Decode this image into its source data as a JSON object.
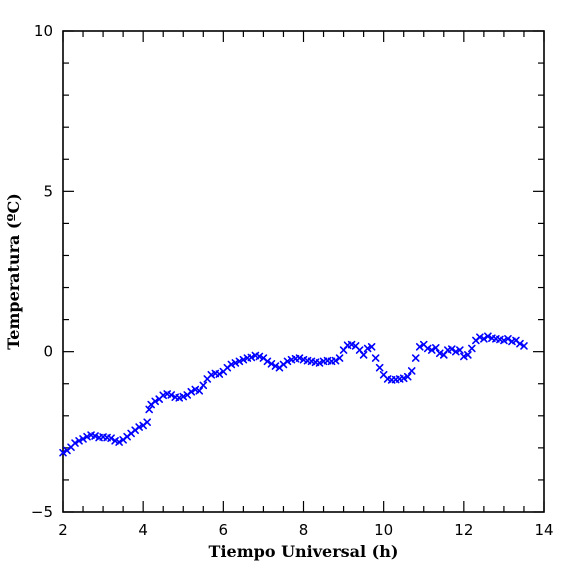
{
  "chart_data": {
    "type": "scatter",
    "xlabel": "Tiempo Universal (h)",
    "ylabel": "Temperatura (ºC)",
    "xlim": [
      2,
      14
    ],
    "ylim": [
      -5,
      10
    ],
    "x_ticks": [
      2,
      4,
      6,
      8,
      10,
      12,
      14
    ],
    "y_ticks": [
      -5,
      0,
      5,
      10
    ],
    "marker": "x",
    "marker_color": "#0000ff",
    "frame_color": "#000000",
    "background": "#ffffff",
    "legend": "none",
    "grid": false,
    "series": [
      {
        "points": [
          [
            2.0,
            -3.15
          ],
          [
            2.1,
            -3.08
          ],
          [
            2.2,
            -2.98
          ],
          [
            2.3,
            -2.85
          ],
          [
            2.4,
            -2.78
          ],
          [
            2.5,
            -2.72
          ],
          [
            2.6,
            -2.65
          ],
          [
            2.7,
            -2.6
          ],
          [
            2.8,
            -2.63
          ],
          [
            2.9,
            -2.68
          ],
          [
            3.0,
            -2.66
          ],
          [
            3.1,
            -2.68
          ],
          [
            3.2,
            -2.7
          ],
          [
            3.3,
            -2.78
          ],
          [
            3.4,
            -2.82
          ],
          [
            3.5,
            -2.75
          ],
          [
            3.6,
            -2.65
          ],
          [
            3.7,
            -2.55
          ],
          [
            3.8,
            -2.45
          ],
          [
            3.9,
            -2.35
          ],
          [
            4.0,
            -2.3
          ],
          [
            4.1,
            -2.2
          ],
          [
            4.15,
            -1.8
          ],
          [
            4.2,
            -1.65
          ],
          [
            4.3,
            -1.55
          ],
          [
            4.4,
            -1.48
          ],
          [
            4.5,
            -1.36
          ],
          [
            4.6,
            -1.32
          ],
          [
            4.7,
            -1.35
          ],
          [
            4.8,
            -1.42
          ],
          [
            4.9,
            -1.44
          ],
          [
            5.0,
            -1.4
          ],
          [
            5.1,
            -1.35
          ],
          [
            5.2,
            -1.25
          ],
          [
            5.3,
            -1.18
          ],
          [
            5.4,
            -1.22
          ],
          [
            5.5,
            -1.05
          ],
          [
            5.6,
            -0.85
          ],
          [
            5.7,
            -0.72
          ],
          [
            5.8,
            -0.68
          ],
          [
            5.9,
            -0.7
          ],
          [
            6.0,
            -0.62
          ],
          [
            6.1,
            -0.5
          ],
          [
            6.2,
            -0.4
          ],
          [
            6.3,
            -0.35
          ],
          [
            6.4,
            -0.3
          ],
          [
            6.5,
            -0.25
          ],
          [
            6.6,
            -0.2
          ],
          [
            6.7,
            -0.18
          ],
          [
            6.8,
            -0.12
          ],
          [
            6.9,
            -0.15
          ],
          [
            7.0,
            -0.2
          ],
          [
            7.1,
            -0.3
          ],
          [
            7.2,
            -0.38
          ],
          [
            7.3,
            -0.45
          ],
          [
            7.4,
            -0.5
          ],
          [
            7.5,
            -0.4
          ],
          [
            7.6,
            -0.3
          ],
          [
            7.7,
            -0.25
          ],
          [
            7.8,
            -0.22
          ],
          [
            7.9,
            -0.2
          ],
          [
            8.0,
            -0.25
          ],
          [
            8.1,
            -0.28
          ],
          [
            8.2,
            -0.3
          ],
          [
            8.3,
            -0.33
          ],
          [
            8.4,
            -0.35
          ],
          [
            8.5,
            -0.3
          ],
          [
            8.6,
            -0.28
          ],
          [
            8.7,
            -0.3
          ],
          [
            8.8,
            -0.28
          ],
          [
            8.9,
            -0.2
          ],
          [
            9.0,
            0.05
          ],
          [
            9.1,
            0.2
          ],
          [
            9.2,
            0.22
          ],
          [
            9.3,
            0.18
          ],
          [
            9.4,
            0.05
          ],
          [
            9.5,
            -0.1
          ],
          [
            9.6,
            0.1
          ],
          [
            9.7,
            0.15
          ],
          [
            9.8,
            -0.2
          ],
          [
            9.9,
            -0.5
          ],
          [
            10.0,
            -0.72
          ],
          [
            10.1,
            -0.85
          ],
          [
            10.2,
            -0.88
          ],
          [
            10.3,
            -0.87
          ],
          [
            10.4,
            -0.85
          ],
          [
            10.5,
            -0.83
          ],
          [
            10.6,
            -0.78
          ],
          [
            10.7,
            -0.6
          ],
          [
            10.8,
            -0.2
          ],
          [
            10.9,
            0.15
          ],
          [
            11.0,
            0.22
          ],
          [
            11.1,
            0.1
          ],
          [
            11.2,
            0.05
          ],
          [
            11.3,
            0.12
          ],
          [
            11.4,
            -0.05
          ],
          [
            11.5,
            -0.1
          ],
          [
            11.6,
            0.05
          ],
          [
            11.7,
            0.08
          ],
          [
            11.8,
            0.0
          ],
          [
            11.9,
            0.05
          ],
          [
            12.0,
            -0.15
          ],
          [
            12.1,
            -0.1
          ],
          [
            12.2,
            0.1
          ],
          [
            12.3,
            0.35
          ],
          [
            12.4,
            0.45
          ],
          [
            12.5,
            0.4
          ],
          [
            12.6,
            0.48
          ],
          [
            12.7,
            0.42
          ],
          [
            12.8,
            0.4
          ],
          [
            12.9,
            0.38
          ],
          [
            13.0,
            0.35
          ],
          [
            13.1,
            0.4
          ],
          [
            13.2,
            0.32
          ],
          [
            13.3,
            0.35
          ],
          [
            13.4,
            0.25
          ],
          [
            13.5,
            0.18
          ]
        ]
      }
    ]
  }
}
